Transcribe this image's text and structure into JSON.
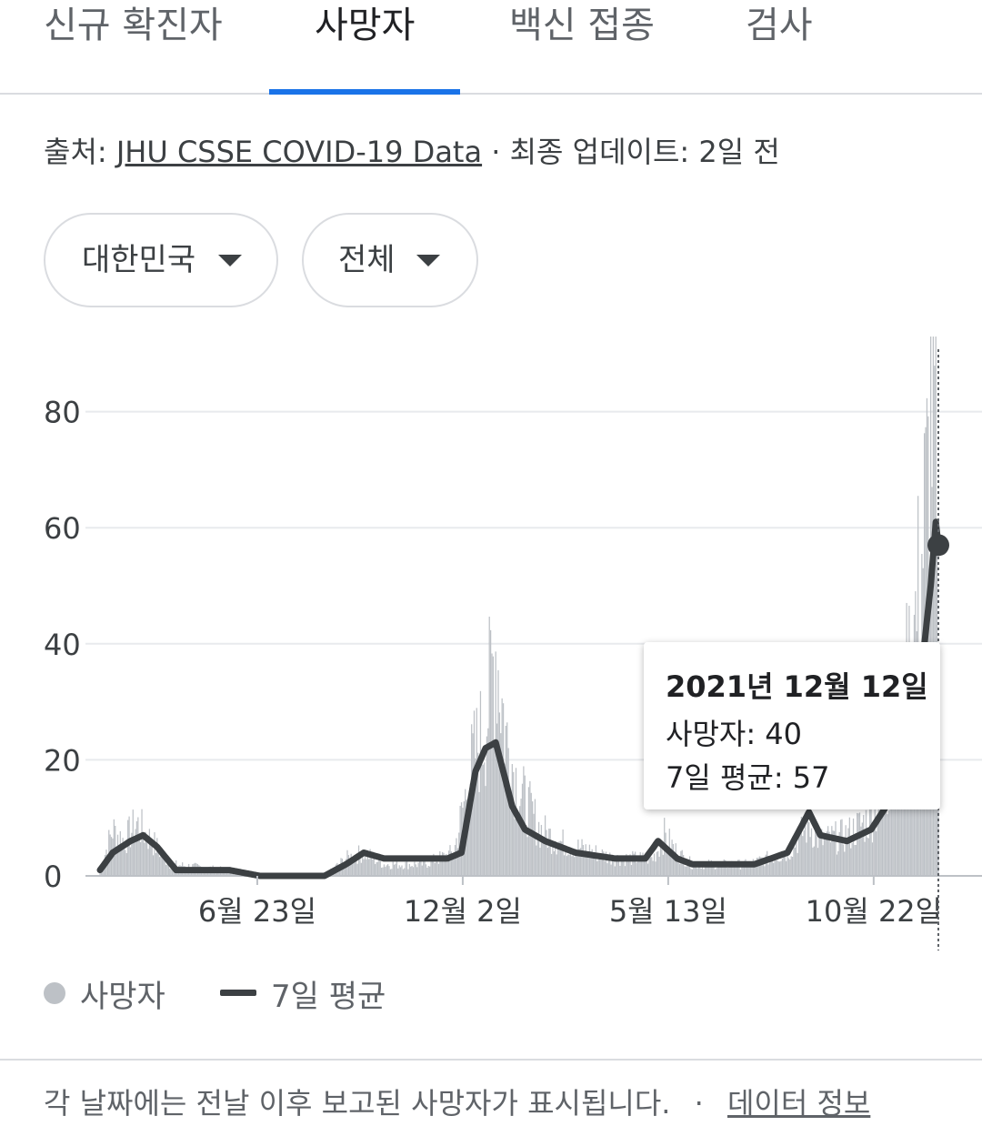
{
  "tabs": [
    {
      "label": "신규 확진자",
      "active": false
    },
    {
      "label": "사망자",
      "active": true
    },
    {
      "label": "백신 접종",
      "active": false
    },
    {
      "label": "검사",
      "active": false
    }
  ],
  "source": {
    "prefix": "출처: ",
    "link": "JHU CSSE COVID-19 Data",
    "suffix": " · 최종 업데이트: 2일 전"
  },
  "filters": {
    "region": "대한민국",
    "scope": "전체"
  },
  "tooltip": {
    "date": "2021년 12월 12일",
    "deaths": "사망자: 40",
    "avg": "7일 평균: 57"
  },
  "legend": {
    "deaths": "사망자",
    "avg": "7일 평균"
  },
  "footer": {
    "note": "각 날짜에는 전날 이후 보고된 사망자가 표시됩니다.",
    "sep": "·",
    "link": "데이터 정보"
  },
  "colors": {
    "accent": "#1a73e8",
    "bars": "#bdc1c6",
    "line": "#3c4043"
  },
  "chart_data": {
    "type": "bar",
    "title": "",
    "ylim": [
      0,
      90
    ],
    "yticks": [
      0,
      20,
      40,
      60,
      80
    ],
    "xtick_labels": [
      "6월 23일",
      "12월 2일",
      "5월 13일",
      "10월 22일"
    ],
    "xtick_positions": [
      "2020-06-23",
      "2020-12-02",
      "2021-05-13",
      "2021-10-22"
    ],
    "date_range": [
      "2020-02-20",
      "2021-12-12"
    ],
    "daily_deaths_keypoints": [
      [
        "2020-02-20",
        1
      ],
      [
        "2020-03-01",
        8
      ],
      [
        "2020-03-10",
        6
      ],
      [
        "2020-03-20",
        9
      ],
      [
        "2020-04-01",
        6
      ],
      [
        "2020-04-15",
        2
      ],
      [
        "2020-06-01",
        1
      ],
      [
        "2020-07-01",
        0
      ],
      [
        "2020-08-15",
        0
      ],
      [
        "2020-09-01",
        3
      ],
      [
        "2020-09-15",
        4
      ],
      [
        "2020-10-01",
        2
      ],
      [
        "2020-11-01",
        2
      ],
      [
        "2020-11-25",
        4
      ],
      [
        "2020-12-10",
        20
      ],
      [
        "2020-12-20",
        26
      ],
      [
        "2020-12-28",
        40
      ],
      [
        "2021-01-05",
        24
      ],
      [
        "2021-01-15",
        15
      ],
      [
        "2021-02-01",
        8
      ],
      [
        "2021-02-15",
        6
      ],
      [
        "2021-03-01",
        5
      ],
      [
        "2021-04-01",
        3
      ],
      [
        "2021-05-01",
        3
      ],
      [
        "2021-05-10",
        7
      ],
      [
        "2021-05-20",
        4
      ],
      [
        "2021-06-01",
        2
      ],
      [
        "2021-07-15",
        2
      ],
      [
        "2021-08-15",
        4
      ],
      [
        "2021-09-01",
        9
      ],
      [
        "2021-09-10",
        6
      ],
      [
        "2021-10-01",
        7
      ],
      [
        "2021-10-20",
        10
      ],
      [
        "2021-11-01",
        15
      ],
      [
        "2021-11-15",
        30
      ],
      [
        "2021-11-25",
        45
      ],
      [
        "2021-12-01",
        60
      ],
      [
        "2021-12-05",
        70
      ],
      [
        "2021-12-08",
        91
      ],
      [
        "2021-12-12",
        40
      ]
    ],
    "series": [
      {
        "name": "사망자",
        "kind": "bar"
      },
      {
        "name": "7일 평균",
        "kind": "line",
        "keypoints": [
          [
            "2020-02-20",
            1
          ],
          [
            "2020-03-01",
            4
          ],
          [
            "2020-03-15",
            6
          ],
          [
            "2020-03-25",
            7
          ],
          [
            "2020-04-05",
            5
          ],
          [
            "2020-04-20",
            1
          ],
          [
            "2020-06-01",
            1
          ],
          [
            "2020-06-25",
            0
          ],
          [
            "2020-08-15",
            0
          ],
          [
            "2020-09-01",
            2
          ],
          [
            "2020-09-15",
            4
          ],
          [
            "2020-10-01",
            3
          ],
          [
            "2020-10-20",
            3
          ],
          [
            "2020-11-20",
            3
          ],
          [
            "2020-12-01",
            4
          ],
          [
            "2020-12-12",
            18
          ],
          [
            "2020-12-20",
            22
          ],
          [
            "2020-12-28",
            23
          ],
          [
            "2021-01-10",
            12
          ],
          [
            "2021-01-20",
            8
          ],
          [
            "2021-02-05",
            6
          ],
          [
            "2021-03-01",
            4
          ],
          [
            "2021-04-01",
            3
          ],
          [
            "2021-04-25",
            3
          ],
          [
            "2021-05-05",
            6
          ],
          [
            "2021-05-20",
            3
          ],
          [
            "2021-06-01",
            2
          ],
          [
            "2021-07-20",
            2
          ],
          [
            "2021-08-15",
            4
          ],
          [
            "2021-09-01",
            11
          ],
          [
            "2021-09-10",
            7
          ],
          [
            "2021-10-01",
            6
          ],
          [
            "2021-10-20",
            8
          ],
          [
            "2021-11-01",
            12
          ],
          [
            "2021-11-15",
            25
          ],
          [
            "2021-11-25",
            35
          ],
          [
            "2021-12-01",
            40
          ],
          [
            "2021-12-06",
            50
          ],
          [
            "2021-12-10",
            61
          ],
          [
            "2021-12-12",
            57
          ]
        ]
      }
    ],
    "highlight": {
      "date": "2021-12-12",
      "value": 57
    },
    "grid": true,
    "legend_position": "bottom-left"
  }
}
